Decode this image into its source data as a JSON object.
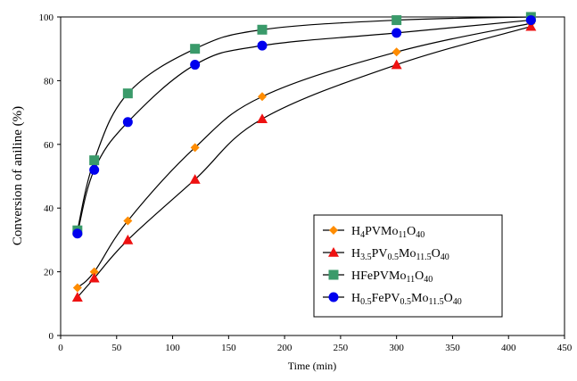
{
  "chart_data": {
    "type": "line",
    "title": "",
    "xlabel": "Time (min)",
    "ylabel": "Conversion of aniline (%)",
    "xlim": [
      0,
      450
    ],
    "ylim": [
      0,
      100
    ],
    "xticks": [
      0,
      50,
      100,
      150,
      200,
      250,
      300,
      350,
      400,
      450
    ],
    "yticks": [
      0,
      20,
      40,
      60,
      80,
      100
    ],
    "grid": false,
    "legend_position": "lower-right",
    "series": [
      {
        "name": "H4PVMo11O40",
        "legend_parts": [
          [
            "H",
            ""
          ],
          [
            "4",
            "sub"
          ],
          [
            "PVMo",
            ""
          ],
          [
            "11",
            "sub"
          ],
          [
            "O",
            ""
          ],
          [
            "40",
            "sub"
          ]
        ],
        "marker": "diamond",
        "color": "#ff8c00",
        "x": [
          15,
          30,
          60,
          120,
          180,
          300,
          420
        ],
        "y": [
          15,
          20,
          36,
          59,
          75,
          89,
          98
        ]
      },
      {
        "name": "H3.5PV0.5Mo11.5O40",
        "legend_parts": [
          [
            "H",
            ""
          ],
          [
            "3.5",
            "sub"
          ],
          [
            "PV",
            ""
          ],
          [
            "0.5",
            "sub"
          ],
          [
            "Mo",
            ""
          ],
          [
            "11.5",
            "sub"
          ],
          [
            "O",
            ""
          ],
          [
            "40",
            "sub"
          ]
        ],
        "marker": "triangle",
        "color": "#ee1111",
        "x": [
          15,
          30,
          60,
          120,
          180,
          300,
          420
        ],
        "y": [
          12,
          18,
          30,
          49,
          68,
          85,
          97
        ]
      },
      {
        "name": "HFePVMo11O40",
        "legend_parts": [
          [
            "HFePVMo",
            ""
          ],
          [
            "11",
            "sub"
          ],
          [
            "O",
            ""
          ],
          [
            "40",
            "sub"
          ]
        ],
        "marker": "square",
        "color": "#3a9a6a",
        "x": [
          15,
          30,
          60,
          120,
          180,
          300,
          420
        ],
        "y": [
          33,
          55,
          76,
          90,
          96,
          99,
          100
        ]
      },
      {
        "name": "H0.5FePV0.5Mo11.5O40",
        "legend_parts": [
          [
            "H",
            ""
          ],
          [
            "0.5",
            "sub"
          ],
          [
            "FePV",
            ""
          ],
          [
            "0.5",
            "sub"
          ],
          [
            "Mo",
            ""
          ],
          [
            "11.5",
            "sub"
          ],
          [
            "O",
            ""
          ],
          [
            "40",
            "sub"
          ]
        ],
        "marker": "circle",
        "color": "#0000ee",
        "x": [
          15,
          30,
          60,
          120,
          180,
          300,
          420
        ],
        "y": [
          32,
          52,
          67,
          85,
          91,
          95,
          99
        ]
      }
    ]
  }
}
